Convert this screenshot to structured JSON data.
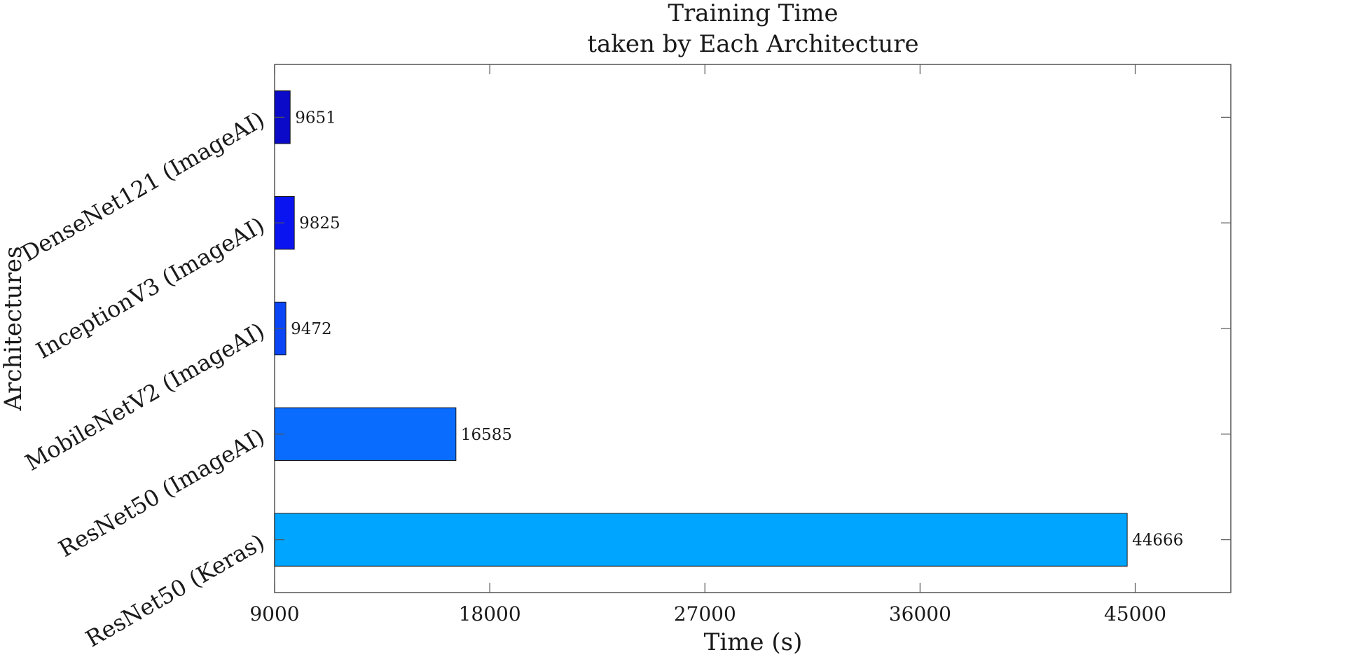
{
  "chart_data": {
    "type": "bar",
    "orientation": "horizontal",
    "title_lines": [
      "Training Time",
      "taken by Each Architecture"
    ],
    "xlabel": "Time (s)",
    "ylabel": "Architectures",
    "categories": [
      "DenseNet121 (ImageAI)",
      "InceptionV3 (ImageAI)",
      "MobileNetV2 (ImageAI)",
      "ResNet50 (ImageAI)",
      "ResNet50 (Keras)"
    ],
    "values": [
      9651,
      9825,
      9472,
      16585,
      44666
    ],
    "bar_colors": [
      "#0a0ac8",
      "#0a14f0",
      "#0a46f5",
      "#0a6cff",
      "#00a5ff"
    ],
    "xlim": [
      9000,
      49000
    ],
    "xticks": [
      9000,
      18000,
      27000,
      36000,
      45000
    ],
    "grid": false,
    "legend": false
  }
}
